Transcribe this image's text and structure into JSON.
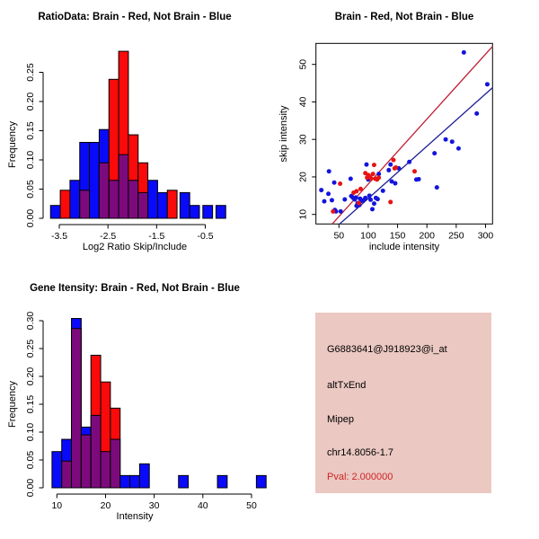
{
  "page": {
    "background": "#ffffff"
  },
  "chart_data": [
    {
      "id": "ratio_hist",
      "type": "bar",
      "subtype": "overlaid-histogram",
      "title": "RatioData: Brain - Red, Not Brain - Blue",
      "xlabel": "Log2 Ratio Skip/Include",
      "ylabel": "Frequency",
      "xlim": [
        -3.78,
        -0.14
      ],
      "ylim": [
        0,
        0.3
      ],
      "grid": false,
      "xticks": [
        -3.5,
        -2.5,
        -1.5,
        -0.5
      ],
      "xtick_labels": [
        "-3.5",
        "-2.5",
        "-1.5",
        "-0.5"
      ],
      "yticks": [
        0,
        0.05,
        0.1,
        0.15,
        0.2,
        0.25
      ],
      "ytick_labels": [
        "0.00",
        "0.05",
        "0.10",
        "0.15",
        "0.20",
        "0.25"
      ],
      "bin_width": 0.2,
      "legend_note": "Brain - Red, Not Brain - Blue",
      "series_colors": {
        "brain": "#FA0A0A",
        "not_brain": "#0A0AFA",
        "overlap": "#7D0A7D"
      },
      "bars": [
        {
          "x": -3.68,
          "not_brain": 0.022,
          "brain": 0
        },
        {
          "x": -3.48,
          "not_brain": 0,
          "brain": 0.048
        },
        {
          "x": -3.28,
          "not_brain": 0.065,
          "brain": 0
        },
        {
          "x": -3.08,
          "not_brain": 0.13,
          "brain": 0.048
        },
        {
          "x": -2.88,
          "not_brain": 0.13,
          "brain": 0
        },
        {
          "x": -2.68,
          "not_brain": 0.152,
          "brain": 0.095
        },
        {
          "x": -2.48,
          "not_brain": 0.065,
          "brain": 0.238
        },
        {
          "x": -2.28,
          "not_brain": 0.109,
          "brain": 0.286
        },
        {
          "x": -2.08,
          "not_brain": 0.065,
          "brain": 0.143
        },
        {
          "x": -1.88,
          "not_brain": 0.044,
          "brain": 0.095
        },
        {
          "x": -1.68,
          "not_brain": 0.065,
          "brain": 0
        },
        {
          "x": -1.48,
          "not_brain": 0.044,
          "brain": 0
        },
        {
          "x": -1.28,
          "not_brain": 0,
          "brain": 0.048
        },
        {
          "x": -1.02,
          "not_brain": 0.044,
          "brain": 0
        },
        {
          "x": -0.82,
          "not_brain": 0.022,
          "brain": 0
        },
        {
          "x": -0.55,
          "not_brain": 0.022,
          "brain": 0
        },
        {
          "x": -0.28,
          "not_brain": 0.022,
          "brain": 0
        }
      ]
    },
    {
      "id": "intensity_scatter",
      "type": "scatter",
      "title": "Brain - Red, Not Brain - Blue",
      "xlabel": "include intensity",
      "ylabel": "skip intensity",
      "xlim": [
        10.8,
        311.9
      ],
      "ylim": [
        7.5,
        55.6
      ],
      "grid": false,
      "xticks": [
        50,
        100,
        150,
        200,
        250,
        300
      ],
      "xtick_labels": [
        "50",
        "100",
        "150",
        "200",
        "250",
        "300"
      ],
      "yticks": [
        10,
        20,
        30,
        40,
        50
      ],
      "ytick_labels": [
        "10",
        "20",
        "30",
        "40",
        "50"
      ],
      "series": [
        {
          "name": "Not Brain",
          "color": "#1414DC",
          "points": [
            [
              20,
              16.5
            ],
            [
              25,
              13.5
            ],
            [
              33,
              21.5
            ],
            [
              32,
              15.5
            ],
            [
              38,
              13.8
            ],
            [
              42,
              18.5
            ],
            [
              43,
              11.2
            ],
            [
              45,
              10.8
            ],
            [
              53,
              10.8
            ],
            [
              60,
              14
            ],
            [
              70,
              19.5
            ],
            [
              71,
              14.9
            ],
            [
              73,
              14.6
            ],
            [
              75,
              14.3
            ],
            [
              77,
              14
            ],
            [
              79,
              14.5
            ],
            [
              80,
              12.3
            ],
            [
              82,
              13
            ],
            [
              85,
              12.5
            ],
            [
              86,
              14.2
            ],
            [
              88,
              13.6
            ],
            [
              92,
              13.8
            ],
            [
              95,
              14.4
            ],
            [
              97,
              23.3
            ],
            [
              100,
              19.3
            ],
            [
              102,
              15
            ],
            [
              104,
              13.9
            ],
            [
              107,
              11.4
            ],
            [
              110,
              12.9
            ],
            [
              113,
              14.4
            ],
            [
              116,
              14.1
            ],
            [
              118,
              20.8
            ],
            [
              125,
              16.3
            ],
            [
              135,
              21.8
            ],
            [
              138,
              23.3
            ],
            [
              140,
              18.8
            ],
            [
              146,
              18.3
            ],
            [
              152,
              22.3
            ],
            [
              170,
              24
            ],
            [
              182,
              19.3
            ],
            [
              186,
              19.4
            ],
            [
              213,
              26.3
            ],
            [
              217,
              17.2
            ],
            [
              232,
              30
            ],
            [
              243,
              29.4
            ],
            [
              254,
              27.6
            ],
            [
              263,
              53.2
            ],
            [
              285,
              36.9
            ],
            [
              303,
              44.7
            ]
          ]
        },
        {
          "name": "Brain",
          "color": "#E61414",
          "points": [
            [
              40,
              10.8
            ],
            [
              52,
              18.2
            ],
            [
              75,
              15.8
            ],
            [
              80,
              16.2
            ],
            [
              84,
              13
            ],
            [
              87,
              16.8
            ],
            [
              95,
              21
            ],
            [
              98,
              19.8
            ],
            [
              100,
              20.5
            ],
            [
              103,
              20
            ],
            [
              105,
              19.6
            ],
            [
              108,
              20.8
            ],
            [
              110,
              23.2
            ],
            [
              112,
              19.5
            ],
            [
              115,
              19.3
            ],
            [
              118,
              19.8
            ],
            [
              138,
              13.3
            ],
            [
              143,
              24.5
            ],
            [
              145,
              22.3
            ],
            [
              147,
              22.5
            ],
            [
              179,
              21.5
            ]
          ]
        }
      ],
      "fit_lines": [
        {
          "name": "brain-fit",
          "color": "#C01E32",
          "x1": 38.8,
          "y1": 7.5,
          "x2": 311.9,
          "y2": 54.8
        },
        {
          "name": "not-brain-fit",
          "color": "#1E1E96",
          "x1": 51.5,
          "y1": 7.5,
          "x2": 311.9,
          "y2": 43.8
        }
      ]
    },
    {
      "id": "gene_hist",
      "type": "bar",
      "subtype": "overlaid-histogram",
      "title": "Gene Itensity: Brain - Red, Not Brain - Blue",
      "xlabel": "Intensity",
      "ylabel": "Frequency",
      "xlim": [
        8,
        54.5
      ],
      "ylim": [
        0,
        0.31
      ],
      "grid": false,
      "xticks": [
        10,
        20,
        30,
        40,
        50
      ],
      "xtick_labels": [
        "10",
        "20",
        "30",
        "40",
        "50"
      ],
      "yticks": [
        0,
        0.05,
        0.1,
        0.15,
        0.2,
        0.25,
        0.3
      ],
      "ytick_labels": [
        "0.00",
        "0.05",
        "0.10",
        "0.15",
        "0.20",
        "0.25",
        "0.30"
      ],
      "bin_width": 2,
      "legend_note": "Brain - Red, Not Brain - Blue",
      "series_colors": {
        "brain": "#FA0A0A",
        "not_brain": "#0A0AFA",
        "overlap": "#7D0A7D"
      },
      "bars": [
        {
          "x": 9,
          "not_brain": 0.065,
          "brain": 0
        },
        {
          "x": 11,
          "not_brain": 0.087,
          "brain": 0.048
        },
        {
          "x": 13,
          "not_brain": 0.304,
          "brain": 0.286
        },
        {
          "x": 15,
          "not_brain": 0.109,
          "brain": 0.095
        },
        {
          "x": 17,
          "not_brain": 0.13,
          "brain": 0.238
        },
        {
          "x": 19,
          "not_brain": 0.065,
          "brain": 0.19
        },
        {
          "x": 21,
          "not_brain": 0.087,
          "brain": 0.143
        },
        {
          "x": 23,
          "not_brain": 0.022,
          "brain": 0
        },
        {
          "x": 25,
          "not_brain": 0.022,
          "brain": 0
        },
        {
          "x": 27,
          "not_brain": 0.043,
          "brain": 0
        },
        {
          "x": 35,
          "not_brain": 0.022,
          "brain": 0
        },
        {
          "x": 43,
          "not_brain": 0.022,
          "brain": 0
        },
        {
          "x": 51,
          "not_brain": 0.022,
          "brain": 0
        }
      ]
    }
  ],
  "info_panel": {
    "bg": "#EBC8C2",
    "probe_id": "G6883641@J918923@i_at",
    "splice_event": "altTxEnd",
    "gene": "Mipep",
    "locus": "chr14.8056-1.7",
    "pval": "Pval: 2.000000",
    "pval_color": "#CD2626",
    "text_color": "#000000"
  }
}
